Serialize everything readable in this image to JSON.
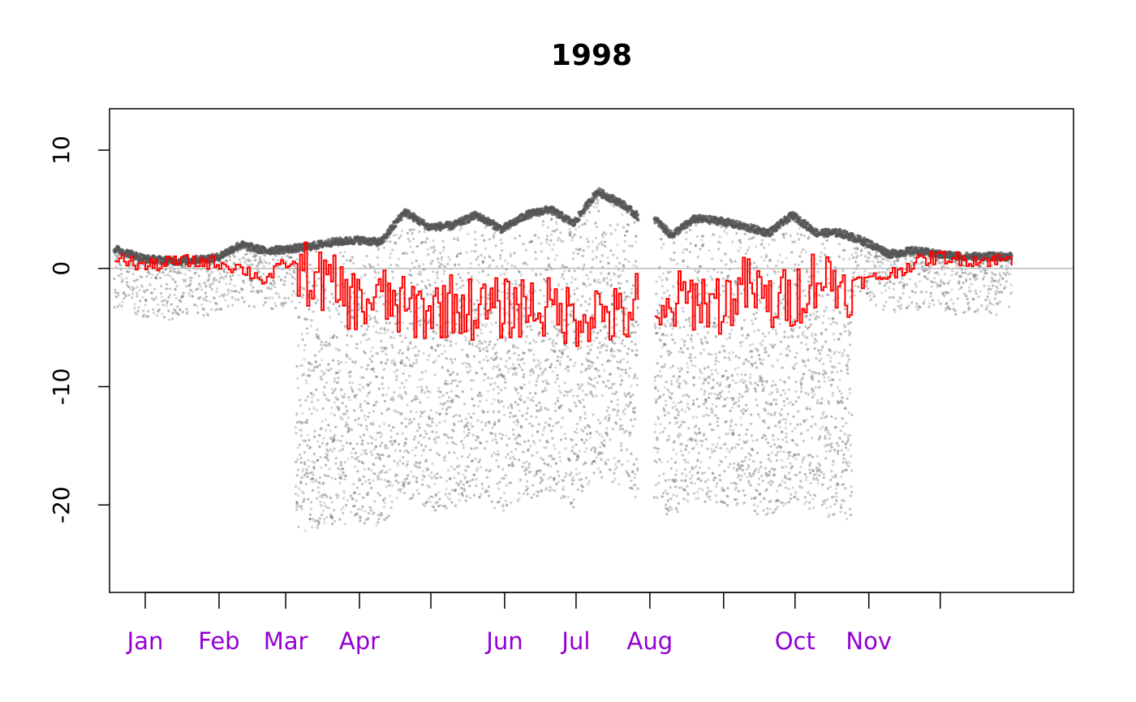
{
  "chart_data": {
    "type": "scatter",
    "title": "1998",
    "xlabel": "",
    "ylabel": "",
    "x_unit": "date",
    "xlim": [
      "1997-12-17",
      "1999-01-26"
    ],
    "ylim": [
      -27.4,
      13.5
    ],
    "yticks": [
      -20,
      -10,
      0,
      10
    ],
    "xticks": [
      {
        "date": "1998-01-01",
        "label": "Jan"
      },
      {
        "date": "1998-02-01",
        "label": "Feb"
      },
      {
        "date": "1998-03-01",
        "label": "Mar"
      },
      {
        "date": "1998-04-01",
        "label": "Apr"
      },
      {
        "date": "1998-05-01",
        "label": ""
      },
      {
        "date": "1998-06-01",
        "label": "Jun"
      },
      {
        "date": "1998-07-01",
        "label": "Jul"
      },
      {
        "date": "1998-08-01",
        "label": "Aug"
      },
      {
        "date": "1998-09-01",
        "label": ""
      },
      {
        "date": "1998-10-01",
        "label": "Oct"
      },
      {
        "date": "1998-11-01",
        "label": "Nov"
      },
      {
        "date": "1998-12-01",
        "label": ""
      }
    ],
    "reference_line": {
      "y": 0,
      "color": "#bbbbbb"
    },
    "grid": false,
    "legend": "none",
    "colors": {
      "points": "#555555",
      "step_line": "#ff0000",
      "month_labels": "#9400d3",
      "axis": "#000000"
    },
    "series": [
      {
        "kind": "points",
        "description_level": "approximate profile of the dense upper trace of hourly points",
        "x": [
          "1997-12-17",
          "1998-01-01",
          "1998-01-15",
          "1998-01-31",
          "1998-02-10",
          "1998-02-20",
          "1998-03-01",
          "1998-03-10",
          "1998-03-20",
          "1998-03-31",
          "1998-04-10",
          "1998-04-20",
          "1998-04-30",
          "1998-05-10",
          "1998-05-20",
          "1998-05-31",
          "1998-06-10",
          "1998-06-20",
          "1998-06-30",
          "1998-07-10",
          "1998-07-20",
          "1998-07-27",
          "1998-08-03",
          "1998-08-10",
          "1998-08-20",
          "1998-08-31",
          "1998-09-10",
          "1998-09-20",
          "1998-09-30",
          "1998-10-10",
          "1998-10-20",
          "1998-10-31",
          "1998-11-10",
          "1998-11-20",
          "1998-11-30",
          "1998-12-10",
          "1998-12-20"
        ],
        "y": [
          1.8,
          0.8,
          0.6,
          0.9,
          2.0,
          1.5,
          1.6,
          1.8,
          2.2,
          2.4,
          2.2,
          4.8,
          3.5,
          3.6,
          4.5,
          3.3,
          4.5,
          5.0,
          3.8,
          6.5,
          5.5,
          4.4,
          4.2,
          2.8,
          4.2,
          4.0,
          3.5,
          3.0,
          4.5,
          3.0,
          3.0,
          2.2,
          1.2,
          1.5,
          1.2,
          1.0,
          1.0
        ]
      },
      {
        "kind": "step",
        "description_level": "approximate daily step line",
        "x": [
          "1997-12-17",
          "1998-01-01",
          "1998-01-15",
          "1998-01-31",
          "1998-02-10",
          "1998-02-20",
          "1998-03-01",
          "1998-03-10",
          "1998-03-20",
          "1998-03-31",
          "1998-04-10",
          "1998-04-20",
          "1998-04-30",
          "1998-05-10",
          "1998-05-20",
          "1998-05-31",
          "1998-06-10",
          "1998-06-20",
          "1998-06-30",
          "1998-07-10",
          "1998-07-20",
          "1998-07-27",
          "1998-08-03",
          "1998-08-10",
          "1998-08-20",
          "1998-08-31",
          "1998-09-10",
          "1998-09-20",
          "1998-09-30",
          "1998-10-10",
          "1998-10-20",
          "1998-10-31",
          "1998-11-10",
          "1998-11-20",
          "1998-11-30",
          "1998-12-10",
          "1998-12-20"
        ],
        "y": [
          1.0,
          0.2,
          0.6,
          0.5,
          0.0,
          -1.0,
          0.5,
          -0.5,
          -1.5,
          -3.0,
          -2.5,
          -3.5,
          -3.5,
          -3.0,
          -3.5,
          -3.5,
          -3.0,
          -3.5,
          -4.0,
          -3.5,
          -4.5,
          -2.5,
          -6.0,
          -3.0,
          -2.5,
          -3.0,
          -1.5,
          -3.0,
          -2.5,
          -0.5,
          -1.5,
          -1.0,
          -0.5,
          0.5,
          1.0,
          0.8,
          0.7
        ]
      }
    ]
  }
}
